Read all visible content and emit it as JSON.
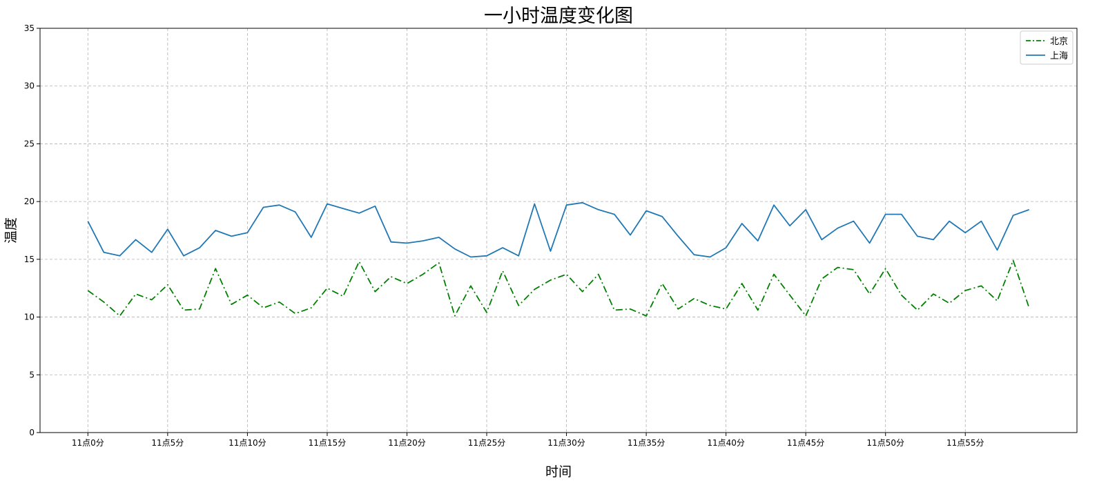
{
  "chart_data": {
    "type": "line",
    "title": "一小时温度变化图",
    "xlabel": "时间",
    "ylabel": "温度",
    "ylim": [
      0,
      35
    ],
    "yticks": [
      0,
      5,
      10,
      15,
      20,
      25,
      30,
      35
    ],
    "xlim": [
      -3,
      62
    ],
    "xticks": [
      0,
      5,
      10,
      15,
      20,
      25,
      30,
      35,
      40,
      45,
      50,
      55
    ],
    "xtick_labels": [
      "11点0分",
      "11点5分",
      "11点10分",
      "11点15分",
      "11点20分",
      "11点25分",
      "11点30分",
      "11点35分",
      "11点40分",
      "11点45分",
      "11点50分",
      "11点55分"
    ],
    "grid": true,
    "legend_position": "top-right",
    "x": [
      0,
      1,
      2,
      3,
      4,
      5,
      6,
      7,
      8,
      9,
      10,
      11,
      12,
      13,
      14,
      15,
      16,
      17,
      18,
      19,
      20,
      21,
      22,
      23,
      24,
      25,
      26,
      27,
      28,
      29,
      30,
      31,
      32,
      33,
      34,
      35,
      36,
      37,
      38,
      39,
      40,
      41,
      42,
      43,
      44,
      45,
      46,
      47,
      48,
      49,
      50,
      51,
      52,
      53,
      54,
      55,
      56,
      57,
      58,
      59
    ],
    "series": [
      {
        "name": "北京",
        "color": "#008000",
        "style": "dashdot",
        "values": [
          12.3,
          11.3,
          10.1,
          12.0,
          11.5,
          12.8,
          10.6,
          10.7,
          14.2,
          11.1,
          11.9,
          10.8,
          11.3,
          10.3,
          10.8,
          12.5,
          11.8,
          14.8,
          12.2,
          13.5,
          12.9,
          13.7,
          14.7,
          10.1,
          12.7,
          10.4,
          14.0,
          11.0,
          12.4,
          13.2,
          13.7,
          12.2,
          13.7,
          10.6,
          10.7,
          10.1,
          12.9,
          10.7,
          11.6,
          11.0,
          10.7,
          12.9,
          10.6,
          13.7,
          11.9,
          10.1,
          13.3,
          14.3,
          14.1,
          12.0,
          14.2,
          11.9,
          10.6,
          12.0,
          11.2,
          12.3,
          12.7,
          11.4,
          14.9,
          10.8
        ]
      },
      {
        "name": "上海",
        "color": "#1f77b4",
        "style": "solid",
        "values": [
          18.3,
          15.6,
          15.3,
          16.7,
          15.6,
          17.6,
          15.3,
          16.0,
          17.5,
          17.0,
          17.3,
          19.5,
          19.7,
          19.1,
          16.9,
          19.8,
          19.4,
          19.0,
          19.6,
          16.5,
          16.4,
          16.6,
          16.9,
          15.9,
          15.2,
          15.3,
          16.0,
          15.3,
          19.8,
          15.7,
          19.7,
          19.9,
          19.3,
          18.9,
          17.1,
          19.2,
          18.7,
          17.0,
          15.4,
          15.2,
          16.0,
          18.1,
          16.6,
          19.7,
          17.9,
          19.3,
          16.7,
          17.7,
          18.3,
          16.4,
          18.9,
          18.9,
          17.0,
          16.7,
          18.3,
          17.3,
          18.3,
          15.8,
          18.8,
          19.3
        ]
      }
    ]
  }
}
